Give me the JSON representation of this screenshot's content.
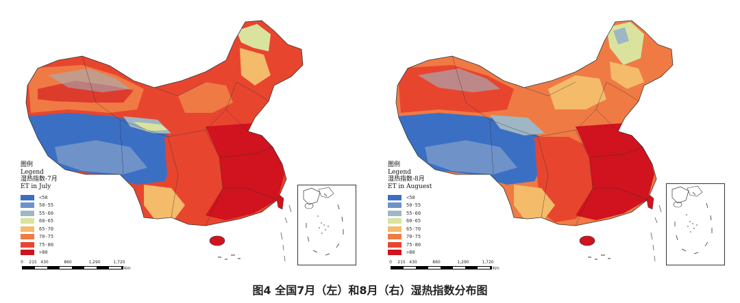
{
  "legend_colors": [
    "#3b6fc4",
    "#6f92c9",
    "#9fb7c4",
    "#d9e39e",
    "#f4bb6a",
    "#f07a44",
    "#e8452f",
    "#d0131e"
  ],
  "legend_ranges": [
    "<50",
    "50-55",
    "55-60",
    "60-65",
    "65-70",
    "70-75",
    "75-80",
    ">80"
  ],
  "maps": [
    {
      "legend_heading": "图例",
      "legend_en": "Legend",
      "legend_cn": "湿热指数-7月",
      "legend_et": "ET in July",
      "scale_ticks": [
        "0",
        "215",
        "430",
        "860",
        "1,290",
        "1,720"
      ],
      "scale_unit": "Km"
    },
    {
      "legend_heading": "图例",
      "legend_en": "Legend",
      "legend_cn": "湿热指数-8月",
      "legend_et": "ET in Auguest",
      "scale_ticks": [
        "0",
        "215",
        "430",
        "860",
        "1,290",
        "1,720"
      ],
      "scale_unit": "Km"
    }
  ],
  "caption": "图4  全国7月（左）和8月（右）湿热指数分布图"
}
